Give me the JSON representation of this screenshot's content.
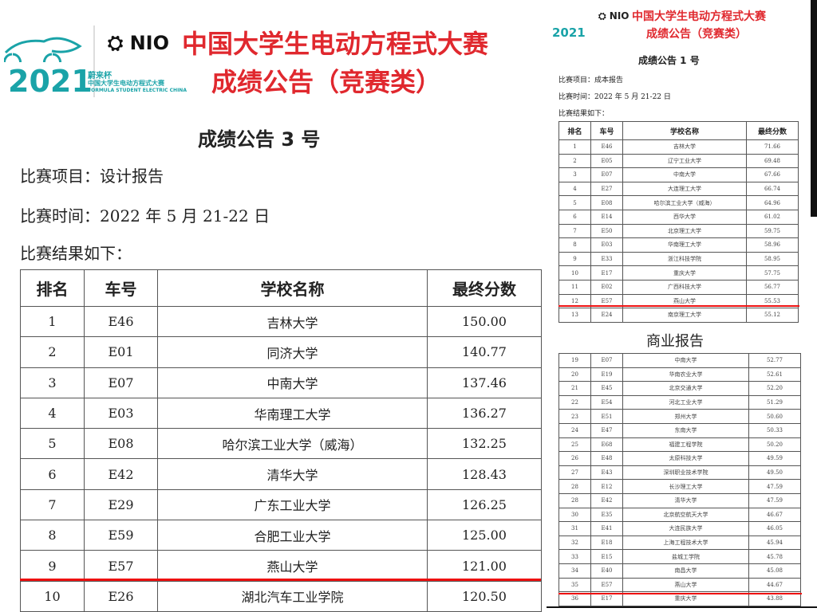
{
  "logo": {
    "year": "2021",
    "cup": "蔚来杯",
    "sub_cn": "中国大学生电动方程式大赛",
    "sub_en": "FORMULA STUDENT ELECTRIC CHINA",
    "brand": "NIO"
  },
  "left": {
    "title1": "中国大学生电动方程式大赛",
    "title2": "成绩公告（竞赛类）",
    "notice": "成绩公告 3 号",
    "item": "比赛项目：设计报告",
    "time": "比赛时间：2022 年 5 月 21-22 日",
    "results": "比赛结果如下：",
    "headers": [
      "排名",
      "车号",
      "学校名称",
      "最终分数"
    ],
    "rows": [
      [
        "1",
        "E46",
        "吉林大学",
        "150.00"
      ],
      [
        "2",
        "E01",
        "同济大学",
        "140.77"
      ],
      [
        "3",
        "E07",
        "中南大学",
        "137.46"
      ],
      [
        "4",
        "E03",
        "华南理工大学",
        "136.27"
      ],
      [
        "5",
        "E08",
        "哈尔滨工业大学（威海）",
        "132.25"
      ],
      [
        "6",
        "E42",
        "清华大学",
        "128.43"
      ],
      [
        "7",
        "E29",
        "广东工业大学",
        "126.25"
      ],
      [
        "8",
        "E59",
        "合肥工业大学",
        "125.00"
      ],
      [
        "9",
        "E57",
        "燕山大学",
        "121.00"
      ],
      [
        "10",
        "E26",
        "湖北汽车工业学院",
        "120.50"
      ]
    ]
  },
  "right_top": {
    "title1": "中国大学生电动方程式大赛",
    "title2": "成绩公告（竞赛类）",
    "notice": "成绩公告 1 号",
    "item": "比赛项目：成本报告",
    "time": "比赛时间：2022 年 5 月 21-22 日",
    "results": "比赛结果如下：",
    "headers": [
      "排名",
      "车号",
      "学校名称",
      "最终分数"
    ],
    "rows": [
      [
        "1",
        "E46",
        "吉林大学",
        "71.66"
      ],
      [
        "2",
        "E05",
        "辽宁工业大学",
        "69.48"
      ],
      [
        "3",
        "E07",
        "中南大学",
        "67.66"
      ],
      [
        "4",
        "E27",
        "大连理工大学",
        "66.74"
      ],
      [
        "5",
        "E08",
        "哈尔滨工业大学（威海）",
        "64.96"
      ],
      [
        "6",
        "E14",
        "西华大学",
        "61.02"
      ],
      [
        "7",
        "E50",
        "北京理工大学",
        "59.75"
      ],
      [
        "8",
        "E03",
        "华南理工大学",
        "58.96"
      ],
      [
        "9",
        "E33",
        "浙江科技学院",
        "58.95"
      ],
      [
        "10",
        "E17",
        "重庆大学",
        "57.75"
      ],
      [
        "11",
        "E02",
        "广西科技大学",
        "56.77"
      ],
      [
        "12",
        "E57",
        "燕山大学",
        "55.53"
      ],
      [
        "13",
        "E24",
        "南京理工大学",
        "55.12"
      ]
    ]
  },
  "right_bottom": {
    "title": "商业报告",
    "rows": [
      [
        "19",
        "E07",
        "中南大学",
        "52.77"
      ],
      [
        "20",
        "E19",
        "华南农业大学",
        "52.61"
      ],
      [
        "21",
        "E45",
        "北京交通大学",
        "52.20"
      ],
      [
        "22",
        "E54",
        "河北工业大学",
        "51.29"
      ],
      [
        "23",
        "E51",
        "郑州大学",
        "50.60"
      ],
      [
        "24",
        "E47",
        "东南大学",
        "50.33"
      ],
      [
        "25",
        "E68",
        "福建工程学院",
        "50.20"
      ],
      [
        "26",
        "E48",
        "太原科技大学",
        "49.59"
      ],
      [
        "27",
        "E43",
        "深圳职业技术学院",
        "49.50"
      ],
      [
        "28",
        "E12",
        "长沙理工大学",
        "47.59"
      ],
      [
        "28",
        "E42",
        "清华大学",
        "47.59"
      ],
      [
        "30",
        "E35",
        "北京航空航天大学",
        "46.67"
      ],
      [
        "31",
        "E41",
        "大连民族大学",
        "46.05"
      ],
      [
        "32",
        "E18",
        "上海工程技术大学",
        "45.94"
      ],
      [
        "33",
        "E15",
        "盐城工学院",
        "45.78"
      ],
      [
        "34",
        "E40",
        "南昌大学",
        "45.08"
      ],
      [
        "35",
        "E57",
        "燕山大学",
        "44.67"
      ],
      [
        "36",
        "E17",
        "重庆大学",
        "43.88"
      ]
    ]
  },
  "colors": {
    "red": "#e0282e",
    "teal": "#1aa3a8",
    "highlight_line": "#ee1111"
  }
}
